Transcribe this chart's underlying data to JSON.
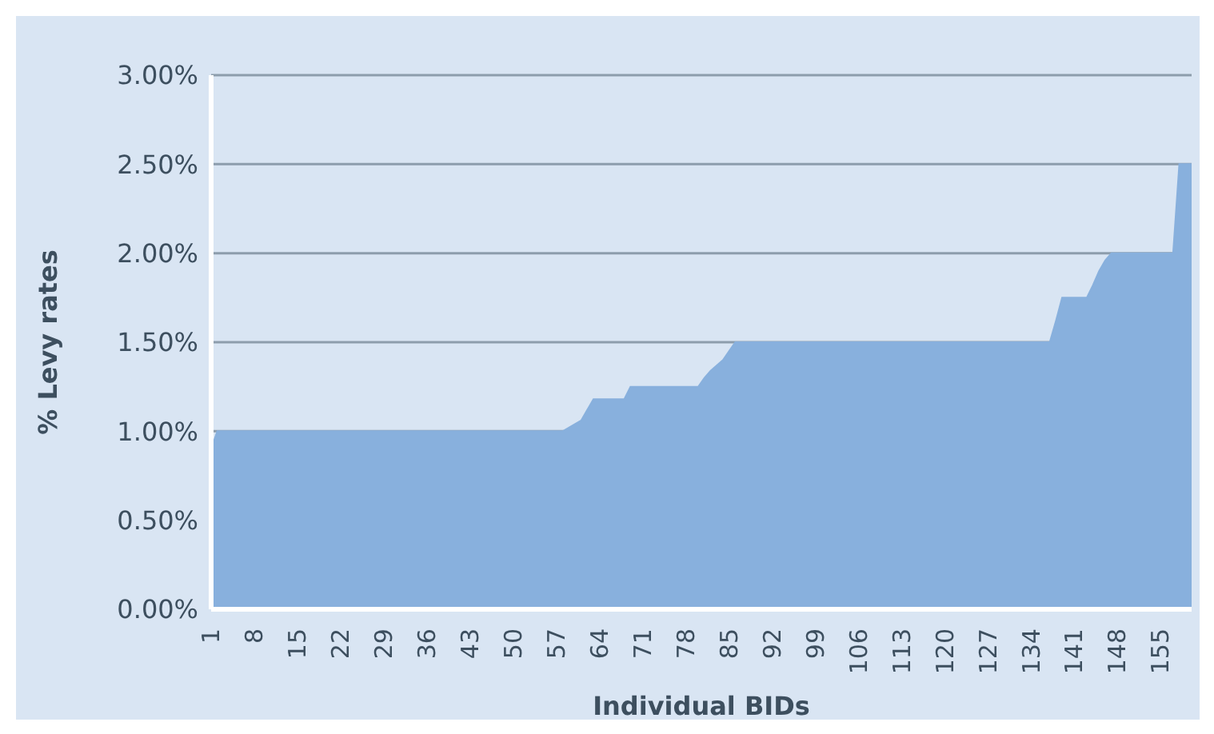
{
  "chart_data": {
    "type": "area",
    "xlabel": "Individual BIDs",
    "ylabel": "% Levy rates",
    "categories": [
      "1",
      null,
      null,
      null,
      null,
      null,
      null,
      "8",
      null,
      null,
      null,
      null,
      null,
      null,
      "15",
      null,
      null,
      null,
      null,
      null,
      null,
      "22",
      null,
      null,
      null,
      null,
      null,
      null,
      "29",
      null,
      null,
      null,
      null,
      null,
      null,
      "36",
      null,
      null,
      null,
      null,
      null,
      null,
      "43",
      null,
      null,
      null,
      null,
      null,
      null,
      "50",
      null,
      null,
      null,
      null,
      null,
      null,
      "57",
      null,
      null,
      null,
      null,
      null,
      null,
      "64",
      null,
      null,
      null,
      null,
      null,
      null,
      "71",
      null,
      null,
      null,
      null,
      null,
      null,
      "78",
      null,
      null,
      null,
      null,
      null,
      null,
      "85",
      null,
      null,
      null,
      null,
      null,
      null,
      "92",
      null,
      null,
      null,
      null,
      null,
      null,
      "99",
      null,
      null,
      null,
      null,
      null,
      null,
      "106",
      null,
      null,
      null,
      null,
      null,
      null,
      "113",
      null,
      null,
      null,
      null,
      null,
      null,
      "120",
      null,
      null,
      null,
      null,
      null,
      null,
      "127",
      null,
      null,
      null,
      null,
      null,
      null,
      "134",
      null,
      null,
      null,
      null,
      null,
      null,
      "141",
      null,
      null,
      null,
      null,
      null,
      null,
      "148",
      null,
      null,
      null,
      null,
      null,
      null,
      "155",
      null,
      null,
      null,
      null,
      null
    ],
    "values": [
      0.9,
      1.0,
      1.0,
      1.0,
      1.0,
      1.0,
      1.0,
      1.0,
      1.0,
      1.0,
      1.0,
      1.0,
      1.0,
      1.0,
      1.0,
      1.0,
      1.0,
      1.0,
      1.0,
      1.0,
      1.0,
      1.0,
      1.0,
      1.0,
      1.0,
      1.0,
      1.0,
      1.0,
      1.0,
      1.0,
      1.0,
      1.0,
      1.0,
      1.0,
      1.0,
      1.0,
      1.0,
      1.0,
      1.0,
      1.0,
      1.0,
      1.0,
      1.0,
      1.0,
      1.0,
      1.0,
      1.0,
      1.0,
      1.0,
      1.0,
      1.0,
      1.0,
      1.0,
      1.0,
      1.0,
      1.0,
      1.0,
      1.0,
      1.02,
      1.04,
      1.06,
      1.12,
      1.18,
      1.18,
      1.18,
      1.18,
      1.18,
      1.18,
      1.25,
      1.25,
      1.25,
      1.25,
      1.25,
      1.25,
      1.25,
      1.25,
      1.25,
      1.25,
      1.25,
      1.25,
      1.3,
      1.34,
      1.37,
      1.4,
      1.45,
      1.5,
      1.5,
      1.5,
      1.5,
      1.5,
      1.5,
      1.5,
      1.5,
      1.5,
      1.5,
      1.5,
      1.5,
      1.5,
      1.5,
      1.5,
      1.5,
      1.5,
      1.5,
      1.5,
      1.5,
      1.5,
      1.5,
      1.5,
      1.5,
      1.5,
      1.5,
      1.5,
      1.5,
      1.5,
      1.5,
      1.5,
      1.5,
      1.5,
      1.5,
      1.5,
      1.5,
      1.5,
      1.5,
      1.5,
      1.5,
      1.5,
      1.5,
      1.5,
      1.5,
      1.5,
      1.5,
      1.5,
      1.5,
      1.5,
      1.5,
      1.5,
      1.5,
      1.62,
      1.75,
      1.75,
      1.75,
      1.75,
      1.75,
      1.82,
      1.9,
      1.96,
      2.0,
      2.0,
      2.0,
      2.0,
      2.0,
      2.0,
      2.0,
      2.0,
      2.0,
      2.0,
      2.0,
      2.5,
      2.5,
      2.5
    ],
    "color": "#88b0dd",
    "ylim": [
      0,
      3
    ],
    "yticks": [
      {
        "value": 0,
        "label": "0.00%"
      },
      {
        "value": 0.5,
        "label": "0.50%"
      },
      {
        "value": 1,
        "label": "1.00%"
      },
      {
        "value": 1.5,
        "label": "1.50%"
      },
      {
        "value": 2,
        "label": "2.00%"
      },
      {
        "value": 2.5,
        "label": "2.50%"
      },
      {
        "value": 3,
        "label": "3.00%"
      }
    ],
    "grid": "y"
  }
}
